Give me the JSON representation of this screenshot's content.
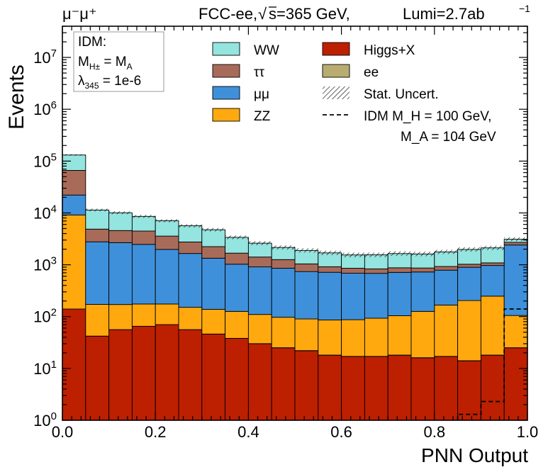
{
  "chart_data": {
    "type": "bar",
    "stacked": true,
    "channel_label": "μ⁻μ⁺",
    "title": "FCC-ee,  √s=365 GeV,  Lumi=2.7ab⁻¹",
    "title_parts": {
      "experiment": "FCC-ee,",
      "sqrt": "√",
      "s_text": "s=365 GeV,",
      "lumi": "Lumi=2.7ab",
      "lumi_exp": "−1"
    },
    "xlabel": "PNN Output",
    "ylabel": "Events",
    "xlim": [
      0,
      1
    ],
    "ylim": [
      1,
      40000000
    ],
    "yscale": "log",
    "x_ticks": [
      "0.0",
      "0.2",
      "0.4",
      "0.6",
      "0.8",
      "1.0"
    ],
    "x_tick_values": [
      0.0,
      0.2,
      0.4,
      0.6,
      0.8,
      1.0
    ],
    "y_ticks": [
      {
        "base": "10",
        "exp": "0",
        "value": 1
      },
      {
        "base": "10",
        "exp": "1",
        "value": 10
      },
      {
        "base": "10",
        "exp": "2",
        "value": 100
      },
      {
        "base": "10",
        "exp": "3",
        "value": 1000
      },
      {
        "base": "10",
        "exp": "4",
        "value": 10000
      },
      {
        "base": "10",
        "exp": "5",
        "value": 100000
      },
      {
        "base": "10",
        "exp": "6",
        "value": 1000000
      },
      {
        "base": "10",
        "exp": "7",
        "value": 10000000
      }
    ],
    "bin_edges": [
      0.0,
      0.05,
      0.1,
      0.15,
      0.2,
      0.25,
      0.3,
      0.35,
      0.4,
      0.45,
      0.5,
      0.55,
      0.6,
      0.65,
      0.7,
      0.75,
      0.8,
      0.85,
      0.9,
      0.95,
      1.0
    ],
    "series": [
      {
        "name": "Higgs+X",
        "color": "#bd1f01",
        "values": [
          140,
          42,
          56,
          65,
          70,
          56,
          46,
          38,
          30,
          25,
          22,
          18,
          17,
          17,
          18,
          16,
          17,
          14,
          18,
          25
        ]
      },
      {
        "name": "ee",
        "color": "#b9ac70",
        "values": [
          0.1,
          0.1,
          0.1,
          0.1,
          0.1,
          0.1,
          0.1,
          0.1,
          0.1,
          0.1,
          0.1,
          0.1,
          0.1,
          0.1,
          0.1,
          0.1,
          0.1,
          0.1,
          0.1,
          0.1
        ]
      },
      {
        "name": "ZZ",
        "color": "#ffa90e",
        "values": [
          9000,
          130,
          115,
          110,
          105,
          95,
          92,
          88,
          80,
          72,
          68,
          68,
          70,
          76,
          86,
          110,
          150,
          190,
          230,
          80
        ]
      },
      {
        "name": "μμ",
        "color": "#3f90da",
        "values": [
          13000,
          2600,
          2500,
          2300,
          1800,
          1500,
          1200,
          900,
          800,
          760,
          650,
          630,
          600,
          590,
          610,
          600,
          620,
          690,
          720,
          2300
        ]
      },
      {
        "name": "ττ",
        "color": "#a96b59",
        "values": [
          44000,
          2100,
          1900,
          2000,
          1600,
          1100,
          900,
          650,
          500,
          400,
          300,
          200,
          170,
          150,
          160,
          140,
          140,
          130,
          120,
          300
        ]
      },
      {
        "name": "WW",
        "color": "#94e4df",
        "values": [
          65000,
          6500,
          5500,
          4100,
          3500,
          2900,
          2500,
          1700,
          1200,
          900,
          850,
          780,
          690,
          720,
          770,
          750,
          840,
          950,
          1030,
          400
        ]
      }
    ],
    "signal": {
      "name": "IDM M_H = 100 GeV, M_A = 104 GeV",
      "style": "dashed",
      "values": [
        0,
        0,
        0,
        0,
        0,
        0,
        0,
        0,
        0,
        0,
        0,
        0,
        0,
        0,
        0,
        0,
        0,
        1.3,
        2.3,
        140
      ]
    },
    "uncertainty": {
      "name": "Stat. Uncert.",
      "style": "hatched"
    },
    "legend": {
      "placement": "top-right",
      "entries": [
        {
          "key": "WW",
          "label": "WW",
          "kind": "box",
          "color": "#94e4df"
        },
        {
          "key": "Higgs+X",
          "label": "Higgs+X",
          "kind": "box",
          "color": "#bd1f01"
        },
        {
          "key": "tautau",
          "label": "ττ",
          "kind": "box",
          "color": "#a96b59"
        },
        {
          "key": "ee",
          "label": "ee",
          "kind": "box",
          "color": "#b9ac70"
        },
        {
          "key": "mumu",
          "label": "μμ",
          "kind": "box",
          "color": "#3f90da"
        },
        {
          "key": "stat",
          "label": "Stat. Uncert.",
          "kind": "hatch",
          "color": "#000000"
        },
        {
          "key": "ZZ",
          "label": "ZZ",
          "kind": "box",
          "color": "#ffa90e"
        },
        {
          "key": "signal",
          "label": "IDM M_H = 100 GeV,",
          "label2": "M_A = 104 GeV",
          "kind": "dash",
          "color": "#000000"
        }
      ]
    },
    "annotation": {
      "line1": "IDM:",
      "line2": "M_H± = M_A",
      "line3": "λ_345 = 1e-6"
    }
  }
}
